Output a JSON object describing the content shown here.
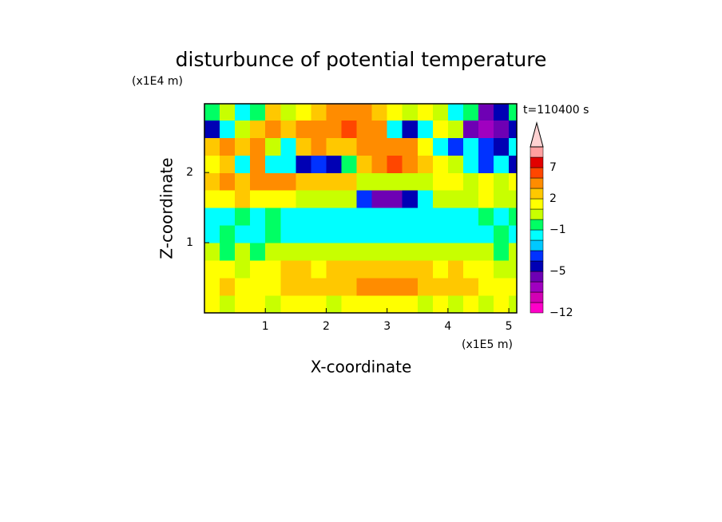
{
  "chart_data": {
    "type": "contour",
    "title": "disturbunce of potential temperature",
    "subtitle": "t=110400 s",
    "x_label": "X-coordinate",
    "y_label": "Z-coordinate",
    "x_unit": "(x1E5 m)",
    "y_unit": "(x1E4 m)",
    "xlim": [
      0,
      5.13
    ],
    "ylim": [
      0,
      2.98
    ],
    "xticks": [
      1,
      2,
      3,
      4,
      5
    ],
    "yticks": [
      1,
      2
    ],
    "cell": 0.25,
    "x": [
      0.125,
      0.375,
      0.625,
      0.875,
      1.125,
      1.375,
      1.625,
      1.875,
      2.125,
      2.375,
      2.625,
      2.875,
      3.125,
      3.375,
      3.625,
      3.875,
      4.125,
      4.375,
      4.625,
      4.875,
      5.125
    ],
    "y": [
      0.125,
      0.375,
      0.625,
      0.875,
      1.125,
      1.375,
      1.625,
      1.875,
      2.125,
      2.375,
      2.625,
      2.875
    ],
    "z": [
      [
        1,
        0.5,
        1,
        1.5,
        0.5,
        1,
        1.5,
        1,
        0.5,
        1,
        1.5,
        1,
        1.5,
        1,
        0.5,
        1,
        0.5,
        1,
        0.5,
        1,
        0.5
      ],
      [
        1.5,
        2,
        1.5,
        1,
        1.5,
        2,
        2.5,
        2,
        2.5,
        2.5,
        3,
        3.5,
        3.5,
        3,
        2.5,
        2,
        2.5,
        2,
        1.5,
        1,
        1.5
      ],
      [
        1,
        1.5,
        0.5,
        1,
        1.5,
        2,
        2,
        1.5,
        2,
        2.5,
        2.5,
        2,
        2.5,
        2,
        2,
        1.5,
        2,
        1.5,
        1,
        0.5,
        0.5
      ],
      [
        0.5,
        -0.5,
        0.5,
        -0.5,
        0.5,
        0.5,
        0,
        0.5,
        0.5,
        0.5,
        0.5,
        0.5,
        0.5,
        0.5,
        0.5,
        0.5,
        0.5,
        0.5,
        0,
        -0.5,
        0
      ],
      [
        -1.5,
        -0.5,
        -1.5,
        -1.5,
        -0.5,
        -1.5,
        -1.5,
        -1.5,
        -1.5,
        -1.5,
        -1.5,
        -1.5,
        -1.5,
        -1.5,
        -1.5,
        -1.5,
        -1.5,
        -1.5,
        -1.5,
        -0.5,
        -1.5
      ],
      [
        -1.5,
        -1.5,
        -0.5,
        -1.5,
        -0.5,
        -1.5,
        -1.5,
        -1.5,
        -1.5,
        -1.5,
        -1.5,
        -1.5,
        -1.5,
        -1.5,
        -1.5,
        -1.5,
        -1.5,
        -1.5,
        -0.5,
        -1.5,
        -0.5
      ],
      [
        1.5,
        1.5,
        2,
        1,
        1.5,
        1,
        0.5,
        0.5,
        0.5,
        0.5,
        -3.5,
        -5.5,
        -5.5,
        -4.5,
        -1.5,
        0.5,
        0.5,
        0.5,
        1,
        0.5,
        0.5
      ],
      [
        2.5,
        3,
        2.5,
        3,
        4,
        3,
        2.5,
        2.5,
        2.5,
        2,
        0.5,
        0.5,
        0.5,
        0.5,
        0.5,
        1.5,
        1,
        0.5,
        1,
        0.5,
        1.5
      ],
      [
        1,
        2.5,
        -1.5,
        3.5,
        -1.5,
        -1.5,
        -4.5,
        -3.5,
        -4.5,
        -0.5,
        2.5,
        4,
        6.5,
        4,
        2.5,
        1.5,
        0.5,
        -1.5,
        -3.5,
        -1.5,
        -4.5
      ],
      [
        2,
        3.5,
        2,
        3.5,
        0.5,
        -1.5,
        2.5,
        3,
        2.5,
        2.5,
        3.5,
        3.5,
        3.5,
        3,
        1.5,
        -1.5,
        -3.5,
        -1.5,
        -3.5,
        -4.5,
        -1.5
      ],
      [
        -4.5,
        -1.5,
        0.5,
        2.5,
        4,
        2.5,
        4,
        3,
        4.5,
        6.5,
        4.5,
        3.5,
        -1.5,
        -4.5,
        -1.5,
        1.5,
        0.5,
        -5.5,
        -6.5,
        -5.5,
        -4.5
      ],
      [
        -0.5,
        0.5,
        -1.5,
        -0.5,
        2.5,
        0.5,
        1,
        2.5,
        3,
        3.5,
        3,
        2.5,
        1.5,
        0.5,
        1.5,
        0.5,
        -1.5,
        -0.5,
        -5.5,
        -4.5,
        -0.5
      ]
    ],
    "colorbar": {
      "levels": [
        -12,
        -10,
        -8,
        -6,
        -5,
        -4,
        -3,
        -2,
        -1,
        0,
        1,
        2,
        3,
        5,
        7,
        9
      ],
      "colors": [
        "#ff00c8",
        "#d200b4",
        "#a000c0",
        "#6e00b4",
        "#0000b4",
        "#0032ff",
        "#00c8ff",
        "#00ffff",
        "#00ff64",
        "#c8ff00",
        "#ffff00",
        "#ffc800",
        "#ff8c00",
        "#ff4600",
        "#e10000",
        "#ffa0a0",
        "#ffd2d2",
        "#ffffff"
      ],
      "ticks": [
        {
          "value": -12,
          "label": "−12"
        },
        {
          "value": -5,
          "label": "−5"
        },
        {
          "value": -1,
          "label": "−1"
        },
        2,
        7
      ]
    }
  }
}
